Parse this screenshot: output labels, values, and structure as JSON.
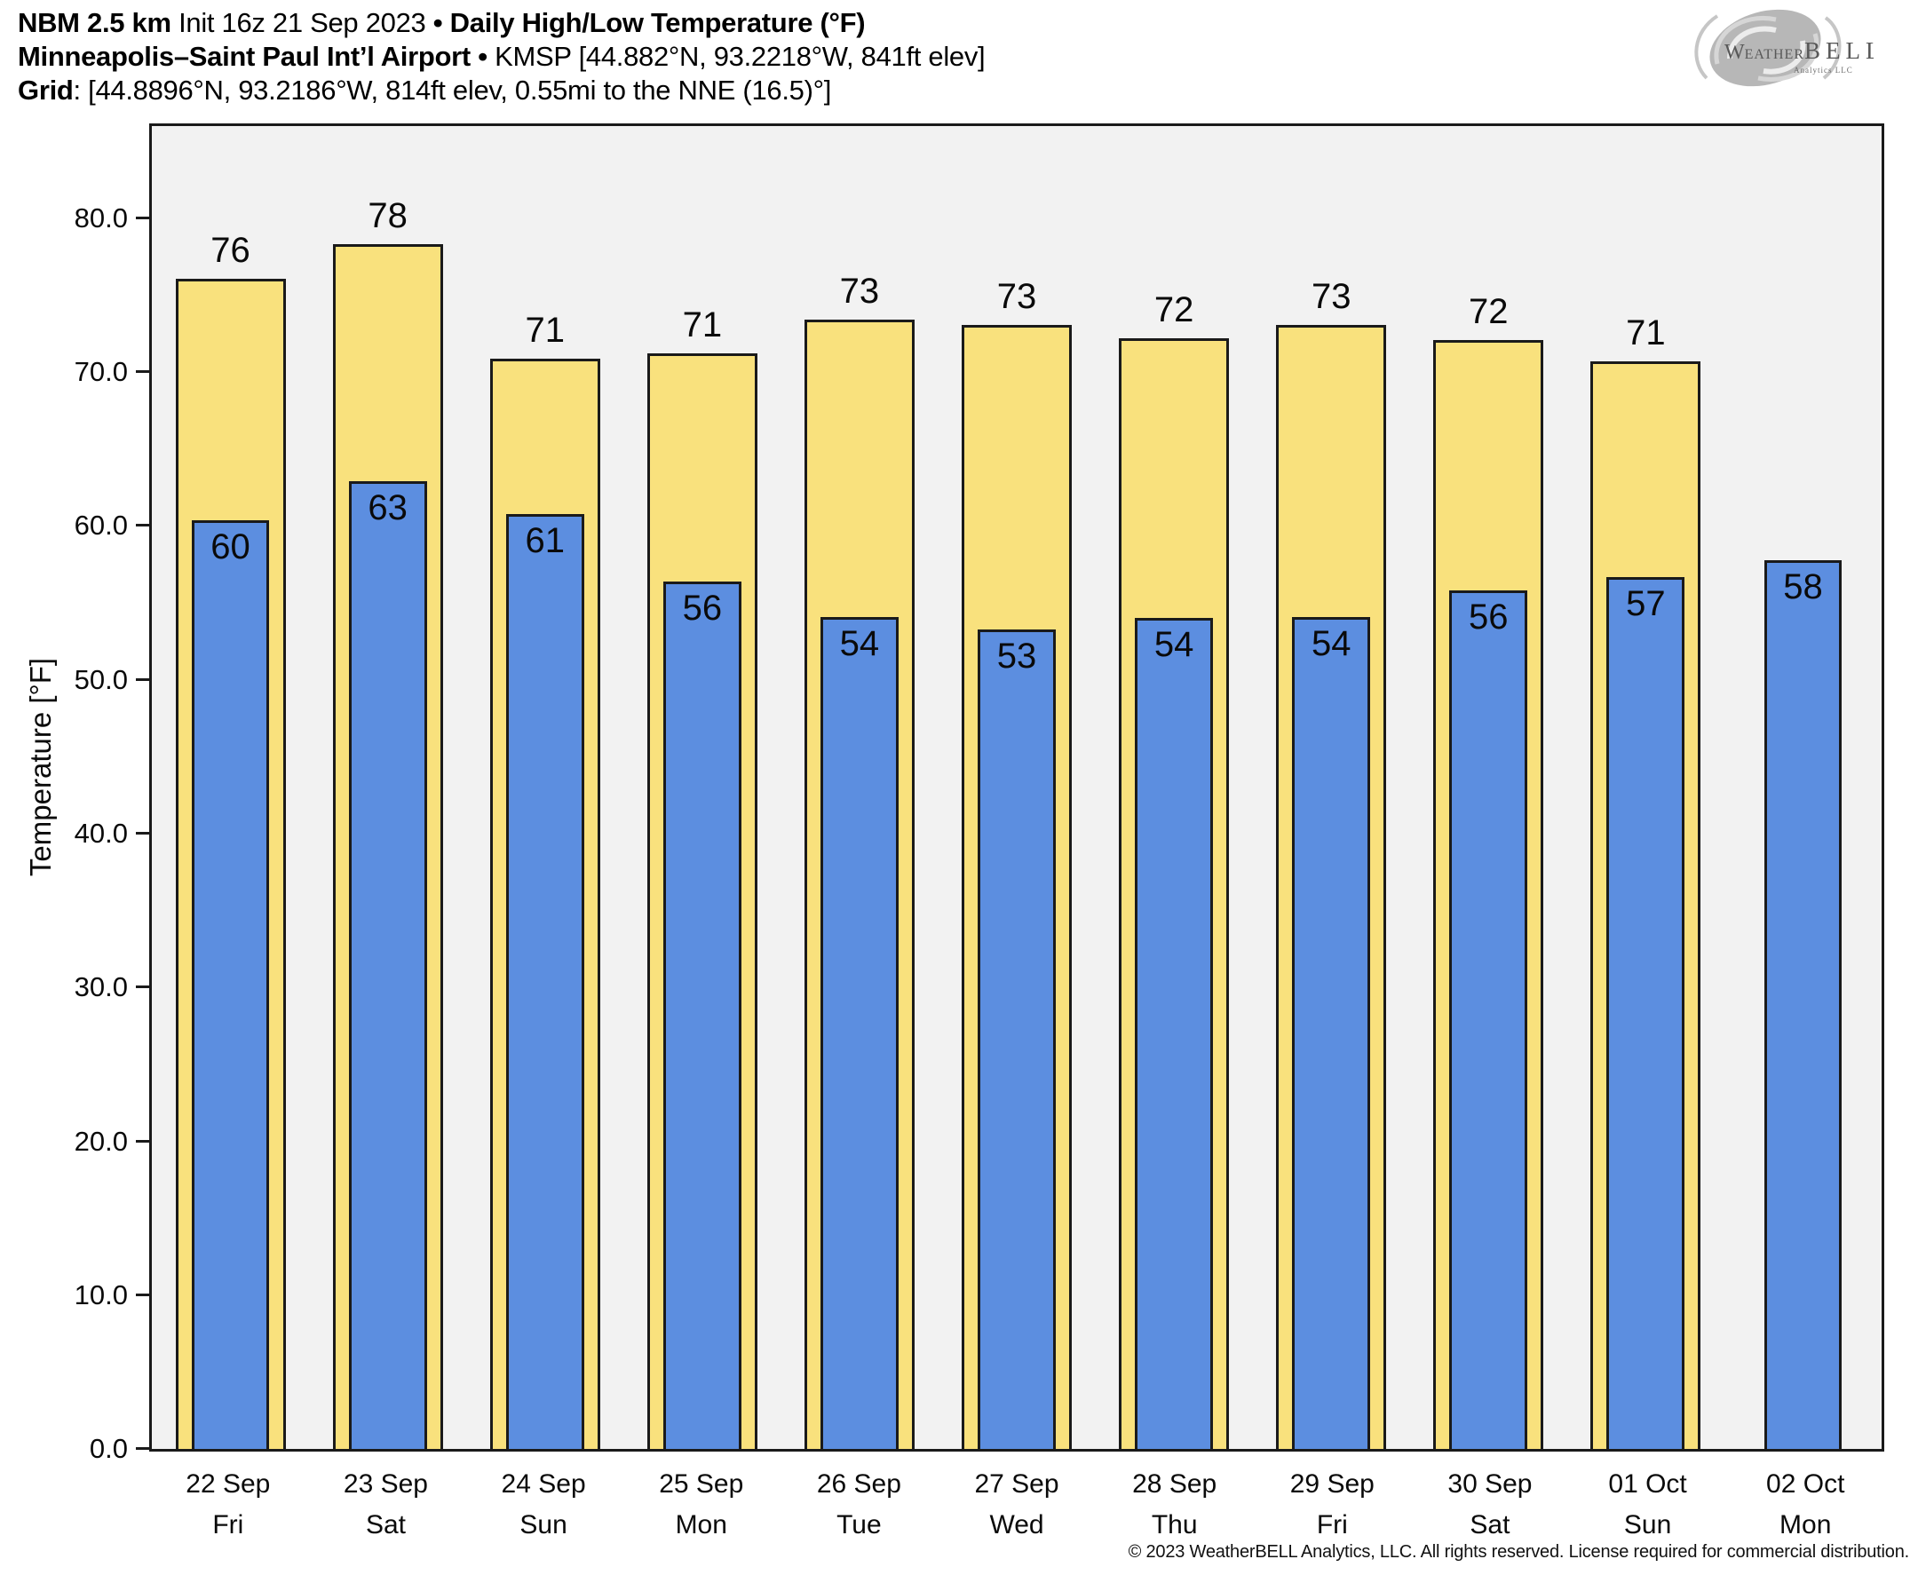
{
  "header": {
    "line1_bold1": "NBM 2.5 km",
    "line1_reg1": "Init 16z 21 Sep 2023",
    "line1_sep": "•",
    "line1_bold2": "Daily High/Low Temperature (°F)",
    "line2_bold": "Minneapolis–Saint Paul Int’l Airport",
    "line2_sep": "•",
    "line2_reg": "KMSP [44.882°N, 93.2218°W, 841ft elev]",
    "line3_bold": "Grid",
    "line3_reg": ": [44.8896°N, 93.2186°W, 814ft elev, 0.55mi to the NNE (16.5)°]"
  },
  "logo": {
    "name_w": "W",
    "name_eather": "EATHER",
    "name_bell": "BELL",
    "subtitle": "Analytics LLC"
  },
  "footer": {
    "copyright": "© 2023 WeatherBELL Analytics, LLC. All rights reserved. License required for commercial distribution."
  },
  "chart_data": {
    "type": "bar",
    "title": "Daily High/Low Temperature (°F)",
    "ylabel": "Temperature [°F]",
    "ylim": [
      0,
      86
    ],
    "grid": false,
    "legend": false,
    "plot_bg": "#F2F2F2",
    "bar_edge": "#1A1A1A",
    "yticks": [
      {
        "value": 0,
        "label": "0.0"
      },
      {
        "value": 10,
        "label": "10.0"
      },
      {
        "value": 20,
        "label": "20.0"
      },
      {
        "value": 30,
        "label": "30.0"
      },
      {
        "value": 40,
        "label": "40.0"
      },
      {
        "value": 50,
        "label": "50.0"
      },
      {
        "value": 60,
        "label": "60.0"
      },
      {
        "value": 70,
        "label": "70.0"
      },
      {
        "value": 80,
        "label": "80.0"
      }
    ],
    "categories": [
      {
        "date": "22 Sep",
        "day": "Fri"
      },
      {
        "date": "23 Sep",
        "day": "Sat"
      },
      {
        "date": "24 Sep",
        "day": "Sun"
      },
      {
        "date": "25 Sep",
        "day": "Mon"
      },
      {
        "date": "26 Sep",
        "day": "Tue"
      },
      {
        "date": "27 Sep",
        "day": "Wed"
      },
      {
        "date": "28 Sep",
        "day": "Thu"
      },
      {
        "date": "29 Sep",
        "day": "Fri"
      },
      {
        "date": "30 Sep",
        "day": "Sat"
      },
      {
        "date": "01 Oct",
        "day": "Sun"
      },
      {
        "date": "02 Oct",
        "day": "Mon"
      }
    ],
    "series": [
      {
        "name": "High",
        "color": "#F9E17D",
        "values": [
          76.1,
          78.3,
          70.9,
          71.2,
          73.4,
          73.1,
          72.2,
          73.1,
          72.1,
          70.7,
          null
        ],
        "labels": [
          "76",
          "78",
          "71",
          "71",
          "73",
          "73",
          "72",
          "73",
          "72",
          "71",
          null
        ]
      },
      {
        "name": "Low",
        "color": "#5C8EE0",
        "values": [
          60.4,
          62.9,
          60.8,
          56.4,
          54.1,
          53.3,
          54.0,
          54.1,
          55.8,
          56.7,
          57.8
        ],
        "labels": [
          "60",
          "63",
          "61",
          "56",
          "54",
          "53",
          "54",
          "54",
          "56",
          "57",
          "58"
        ]
      }
    ]
  }
}
